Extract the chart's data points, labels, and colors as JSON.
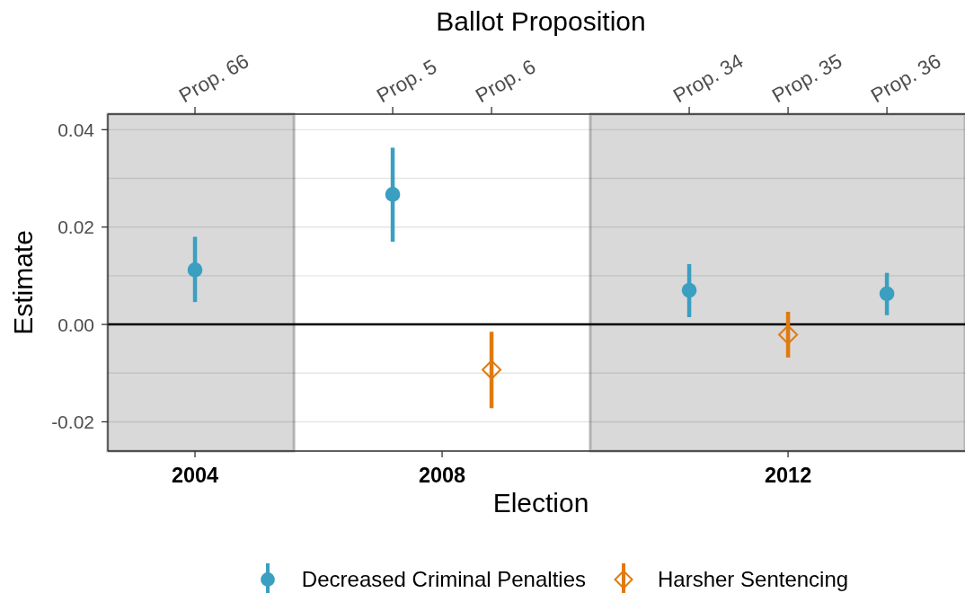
{
  "chart_data": {
    "type": "scatter",
    "xlabel": "Election",
    "x2label": "Ballot Proposition",
    "ylabel": "Estimate",
    "categories": [
      "Prop. 66",
      null,
      "Prop. 5",
      "Prop. 6",
      null,
      "Prop. 34",
      "Prop. 35",
      "Prop. 36"
    ],
    "ylim": [
      -0.026,
      0.0432
    ],
    "yticks": [
      -0.02,
      {
        "value": -0.01,
        "label": null
      },
      {
        "value": 0,
        "label": "0.00"
      },
      {
        "value": 0.01,
        "label": null
      },
      0.02,
      {
        "value": 0.03,
        "label": null
      },
      0.04
    ],
    "series": [
      {
        "name": "Decreased Criminal Penalties",
        "color": "#3a9fc0",
        "marker": "circle",
        "values": [
          0.0112,
          null,
          0.0267,
          null,
          null,
          0.007,
          null,
          0.0063
        ],
        "errors": [
          [
            0.0046,
            0.018
          ],
          null,
          [
            0.017,
            0.0363
          ],
          null,
          null,
          [
            0.0015,
            0.0124
          ],
          null,
          [
            0.0019,
            0.0106
          ]
        ]
      },
      {
        "name": "Harsher Sentencing",
        "color": "#e07a10",
        "marker": "diamond",
        "values": [
          null,
          null,
          null,
          -0.0093,
          null,
          null,
          -0.0021,
          null
        ],
        "errors": [
          null,
          null,
          null,
          [
            -0.0172,
            -0.0015
          ],
          null,
          null,
          [
            -0.0068,
            0.0026
          ],
          null
        ]
      }
    ],
    "annotations": [
      "2004",
      "2008",
      "2012"
    ],
    "ref_lines": [
      {
        "axis": "y",
        "value": 0,
        "color": "#000000"
      }
    ],
    "grid": "y",
    "legend": "bottom"
  }
}
